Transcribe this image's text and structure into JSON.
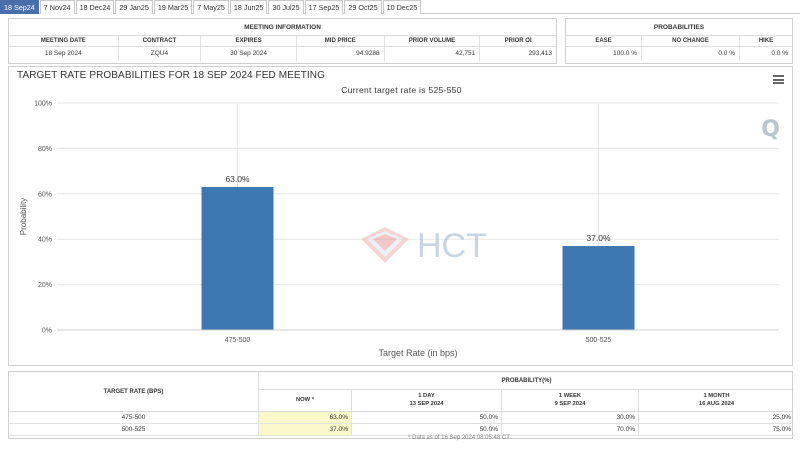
{
  "tabs": [
    "18 Sep24",
    "7 Nov24",
    "18 Dec24",
    "29 Jan25",
    "19 Mar25",
    "7 May25",
    "18 Jun25",
    "30 Jul25",
    "17 Sep25",
    "29 Oct25",
    "10 Dec25"
  ],
  "meeting_info": {
    "title": "MEETING INFORMATION",
    "headers": [
      "MEETING DATE",
      "CONTRACT",
      "EXPIRES",
      "MID PRICE",
      "PRIOR VOLUME",
      "PRIOR OI"
    ],
    "values": [
      "18 Sep 2024",
      "ZQU4",
      "30 Sep 2024",
      "94.9288",
      "42,751",
      "293,413"
    ]
  },
  "probabilities": {
    "title": "PROBABILITIES",
    "headers": [
      "EASE",
      "NO CHANGE",
      "HIKE"
    ],
    "values": [
      "100.0 %",
      "0.0 %",
      "0.0 %"
    ]
  },
  "chart": {
    "title": "TARGET RATE PROBABILITIES FOR 18 SEP 2024 FED MEETING",
    "subtitle": "Current target rate is 525-550",
    "menu_icon": "hamburger-menu-icon",
    "logo_letter": "Q",
    "watermark": "HCT"
  },
  "chart_data": {
    "type": "bar",
    "title": "TARGET RATE PROBABILITIES FOR 18 SEP 2024 FED MEETING",
    "subtitle": "Current target rate is 525-550",
    "categories": [
      "475-500",
      "500-525"
    ],
    "values": [
      63.0,
      37.0
    ],
    "data_labels": [
      "63.0%",
      "37.0%"
    ],
    "xlabel": "Target Rate (in bps)",
    "ylabel": "Probability",
    "ylim": [
      0,
      100
    ],
    "yticks": [
      "0%",
      "20%",
      "40%",
      "60%",
      "80%",
      "100%"
    ],
    "grid": true,
    "bar_color": "#3e78b2"
  },
  "bottom_table": {
    "left_header": "TARGET RATE (BPS)",
    "prob_header": "PROBABILITY(%)",
    "sub_headers": [
      {
        "line1": "NOW *",
        "line2": ""
      },
      {
        "line1": "1 DAY",
        "line2": "13 SEP 2024"
      },
      {
        "line1": "1 WEEK",
        "line2": "9 SEP 2024"
      },
      {
        "line1": "1 MONTH",
        "line2": "16 AUG 2024"
      }
    ],
    "rows": [
      {
        "rate": "475-500",
        "now": "63.0%",
        "day": "50.0%",
        "week": "30.0%",
        "month": "25.0%"
      },
      {
        "rate": "500-525",
        "now": "37.0%",
        "day": "50.0%",
        "week": "70.0%",
        "month": "75.0%"
      }
    ],
    "note": "* Data as of 16 Sep 2024 08:05:48 CT",
    "highlight_color": "#fbf8c9"
  }
}
